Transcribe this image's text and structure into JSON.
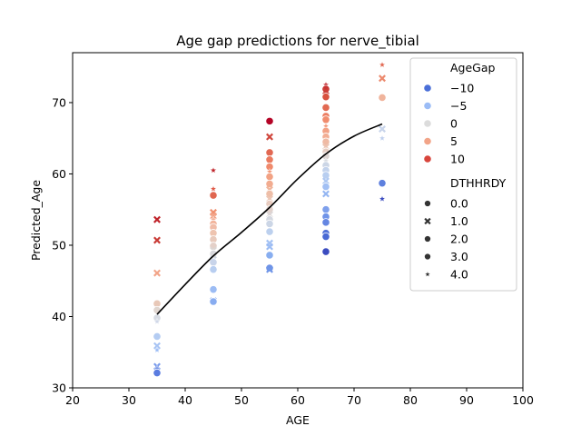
{
  "chart_data": {
    "type": "scatter",
    "title": "Age gap predictions for nerve_tibial",
    "xlabel": "AGE",
    "ylabel": "Predicted_Age",
    "xlim": [
      20,
      100
    ],
    "ylim": [
      30,
      77
    ],
    "xticks": [
      "20",
      "30",
      "40",
      "50",
      "60",
      "70",
      "80",
      "90",
      "100"
    ],
    "yticks": [
      "30",
      "40",
      "50",
      "60",
      "70"
    ],
    "grid": false,
    "legend": {
      "placement": "top-right",
      "hue_title": "AgeGap",
      "hue_items": [
        {
          "label": "−10",
          "color": "#4a6fd8"
        },
        {
          "label": "−5",
          "color": "#9bbcf6"
        },
        {
          "label": "0",
          "color": "#dcdcdc"
        },
        {
          "label": "5",
          "color": "#f2a488"
        },
        {
          "label": "10",
          "color": "#d8453c"
        }
      ],
      "style_title": "DTHHRDY",
      "style_items": [
        {
          "label": "0.0",
          "marker": "circle"
        },
        {
          "label": "1.0",
          "marker": "x"
        },
        {
          "label": "2.0",
          "marker": "circle"
        },
        {
          "label": "3.0",
          "marker": "circle"
        },
        {
          "label": "4.0",
          "marker": "star"
        }
      ]
    },
    "trend_line": {
      "color": "#000000",
      "points": [
        [
          35,
          40.3
        ],
        [
          40,
          44.5
        ],
        [
          45,
          48.5
        ],
        [
          50,
          51.8
        ],
        [
          55,
          55.3
        ],
        [
          60,
          59.3
        ],
        [
          65,
          62.8
        ],
        [
          70,
          65.3
        ],
        [
          75,
          67.0
        ]
      ]
    },
    "points": [
      {
        "x": 35,
        "y": 53.6,
        "m": "x",
        "c": "#c0242b"
      },
      {
        "x": 35,
        "y": 50.7,
        "m": "x",
        "c": "#c93a36"
      },
      {
        "x": 35,
        "y": 46.1,
        "m": "x",
        "c": "#f2a488"
      },
      {
        "x": 35,
        "y": 41.8,
        "m": "circle",
        "c": "#e8c8b8"
      },
      {
        "x": 35,
        "y": 40.9,
        "m": "circle",
        "c": "#e0d6d0"
      },
      {
        "x": 35,
        "y": 39.8,
        "m": "circle",
        "c": "#d8dce4"
      },
      {
        "x": 35,
        "y": 39.3,
        "m": "star",
        "c": "#d0d8e8"
      },
      {
        "x": 35,
        "y": 37.2,
        "m": "circle",
        "c": "#b4ccf2"
      },
      {
        "x": 35,
        "y": 35.9,
        "m": "x",
        "c": "#a8c4f4"
      },
      {
        "x": 35,
        "y": 35.3,
        "m": "star",
        "c": "#9ebef6"
      },
      {
        "x": 35,
        "y": 33.0,
        "m": "x",
        "c": "#7a9cec"
      },
      {
        "x": 35,
        "y": 32.7,
        "m": "star",
        "c": "#6a8ae4"
      },
      {
        "x": 35,
        "y": 32.1,
        "m": "circle",
        "c": "#5a7ce0"
      },
      {
        "x": 45,
        "y": 60.5,
        "m": "star",
        "c": "#c0242b"
      },
      {
        "x": 45,
        "y": 57.9,
        "m": "star",
        "c": "#e05a48"
      },
      {
        "x": 45,
        "y": 57.0,
        "m": "circle",
        "c": "#e06650"
      },
      {
        "x": 45,
        "y": 54.6,
        "m": "x",
        "c": "#f09070"
      },
      {
        "x": 45,
        "y": 54.1,
        "m": "x",
        "c": "#f2a488"
      },
      {
        "x": 45,
        "y": 53.6,
        "m": "star",
        "c": "#f2aa90"
      },
      {
        "x": 45,
        "y": 53.0,
        "m": "circle",
        "c": "#f2b49c"
      },
      {
        "x": 45,
        "y": 52.5,
        "m": "circle",
        "c": "#f0bca8"
      },
      {
        "x": 45,
        "y": 51.7,
        "m": "circle",
        "c": "#eec4b0"
      },
      {
        "x": 45,
        "y": 50.8,
        "m": "circle",
        "c": "#e8cabc"
      },
      {
        "x": 45,
        "y": 49.9,
        "m": "circle",
        "c": "#e4d0c8"
      },
      {
        "x": 45,
        "y": 49.3,
        "m": "x",
        "c": "#dcd6d4"
      },
      {
        "x": 45,
        "y": 48.8,
        "m": "circle",
        "c": "#d8d8dc"
      },
      {
        "x": 45,
        "y": 48.0,
        "m": "x",
        "c": "#d0d8e4"
      },
      {
        "x": 45,
        "y": 47.6,
        "m": "circle",
        "c": "#c8d4ea"
      },
      {
        "x": 45,
        "y": 46.6,
        "m": "circle",
        "c": "#b8cef0"
      },
      {
        "x": 45,
        "y": 43.8,
        "m": "circle",
        "c": "#9cbcf4"
      },
      {
        "x": 45,
        "y": 42.2,
        "m": "x",
        "c": "#8cb0f2"
      },
      {
        "x": 45,
        "y": 42.1,
        "m": "circle",
        "c": "#88acf0"
      },
      {
        "x": 55,
        "y": 67.4,
        "m": "circle",
        "c": "#b40426"
      },
      {
        "x": 55,
        "y": 65.2,
        "m": "x",
        "c": "#d0473d"
      },
      {
        "x": 55,
        "y": 63.0,
        "m": "circle",
        "c": "#e26852"
      },
      {
        "x": 55,
        "y": 62.0,
        "m": "circle",
        "c": "#ea7b60"
      },
      {
        "x": 55,
        "y": 61.0,
        "m": "circle",
        "c": "#f08a6c"
      },
      {
        "x": 55,
        "y": 60.3,
        "m": "star",
        "c": "#f29878"
      },
      {
        "x": 55,
        "y": 59.6,
        "m": "circle",
        "c": "#f2a284"
      },
      {
        "x": 55,
        "y": 58.6,
        "m": "circle",
        "c": "#f2ac90"
      },
      {
        "x": 55,
        "y": 57.8,
        "m": "x",
        "c": "#f0b69c"
      },
      {
        "x": 55,
        "y": 57.2,
        "m": "circle",
        "c": "#eebea8"
      },
      {
        "x": 55,
        "y": 56.5,
        "m": "x",
        "c": "#ecc6b4"
      },
      {
        "x": 55,
        "y": 55.8,
        "m": "circle",
        "c": "#e8ccc0"
      },
      {
        "x": 55,
        "y": 55.0,
        "m": "circle",
        "c": "#e2d2cc"
      },
      {
        "x": 55,
        "y": 54.3,
        "m": "x",
        "c": "#dcd6d6"
      },
      {
        "x": 55,
        "y": 53.6,
        "m": "circle",
        "c": "#d4d8e0"
      },
      {
        "x": 55,
        "y": 53.0,
        "m": "circle",
        "c": "#ccd6e6"
      },
      {
        "x": 55,
        "y": 51.9,
        "m": "circle",
        "c": "#bcd0ee"
      },
      {
        "x": 55,
        "y": 50.3,
        "m": "x",
        "c": "#a4c2f4"
      },
      {
        "x": 55,
        "y": 49.8,
        "m": "x",
        "c": "#9cbcf4"
      },
      {
        "x": 55,
        "y": 48.6,
        "m": "circle",
        "c": "#88aef0"
      },
      {
        "x": 55,
        "y": 46.8,
        "m": "circle",
        "c": "#6e92e6"
      },
      {
        "x": 55,
        "y": 46.6,
        "m": "x",
        "c": "#7096e8"
      },
      {
        "x": 65,
        "y": 72.5,
        "m": "star",
        "c": "#c0242b"
      },
      {
        "x": 65,
        "y": 71.9,
        "m": "circle",
        "c": "#c83432"
      },
      {
        "x": 65,
        "y": 71.6,
        "m": "x",
        "c": "#cc3e38"
      },
      {
        "x": 65,
        "y": 70.8,
        "m": "circle",
        "c": "#d8513f"
      },
      {
        "x": 65,
        "y": 69.3,
        "m": "circle",
        "c": "#e26a52"
      },
      {
        "x": 65,
        "y": 68.1,
        "m": "circle",
        "c": "#ec7e62"
      },
      {
        "x": 65,
        "y": 67.6,
        "m": "circle",
        "c": "#f08c6e"
      },
      {
        "x": 65,
        "y": 66.7,
        "m": "star",
        "c": "#f2987a"
      },
      {
        "x": 65,
        "y": 66.0,
        "m": "circle",
        "c": "#f2a286"
      },
      {
        "x": 65,
        "y": 65.2,
        "m": "circle",
        "c": "#f2ae94"
      },
      {
        "x": 65,
        "y": 64.5,
        "m": "circle",
        "c": "#efbaa4"
      },
      {
        "x": 65,
        "y": 63.8,
        "m": "x",
        "c": "#ecc4b2"
      },
      {
        "x": 65,
        "y": 63.1,
        "m": "circle",
        "c": "#e6cdc2"
      },
      {
        "x": 65,
        "y": 62.5,
        "m": "circle",
        "c": "#dcd4d2"
      },
      {
        "x": 65,
        "y": 61.8,
        "m": "star",
        "c": "#d4d8de"
      },
      {
        "x": 65,
        "y": 61.2,
        "m": "circle",
        "c": "#ccd6e6"
      },
      {
        "x": 65,
        "y": 60.5,
        "m": "circle",
        "c": "#c2d2ec"
      },
      {
        "x": 65,
        "y": 59.8,
        "m": "circle",
        "c": "#b8cef0"
      },
      {
        "x": 65,
        "y": 59.0,
        "m": "x",
        "c": "#aec8f2"
      },
      {
        "x": 65,
        "y": 58.2,
        "m": "circle",
        "c": "#a2c0f4"
      },
      {
        "x": 65,
        "y": 57.2,
        "m": "x",
        "c": "#94b6f2"
      },
      {
        "x": 65,
        "y": 55.0,
        "m": "circle",
        "c": "#7ea0ec"
      },
      {
        "x": 65,
        "y": 54.0,
        "m": "circle",
        "c": "#7094e8"
      },
      {
        "x": 65,
        "y": 53.2,
        "m": "circle",
        "c": "#6486e2"
      },
      {
        "x": 65,
        "y": 51.7,
        "m": "circle",
        "c": "#5272d8"
      },
      {
        "x": 65,
        "y": 51.2,
        "m": "circle",
        "c": "#4a6ad4"
      },
      {
        "x": 65,
        "y": 49.1,
        "m": "circle",
        "c": "#3b4cc0"
      },
      {
        "x": 75,
        "y": 75.3,
        "m": "star",
        "c": "#e26852"
      },
      {
        "x": 75,
        "y": 73.4,
        "m": "x",
        "c": "#ec8a6e"
      },
      {
        "x": 75,
        "y": 70.7,
        "m": "circle",
        "c": "#f0b49c"
      },
      {
        "x": 75,
        "y": 66.3,
        "m": "x",
        "c": "#c8d4ea"
      },
      {
        "x": 75,
        "y": 65.0,
        "m": "star",
        "c": "#c0d0ee"
      },
      {
        "x": 75,
        "y": 58.7,
        "m": "circle",
        "c": "#5e80de"
      },
      {
        "x": 75,
        "y": 56.5,
        "m": "star",
        "c": "#3b4cc0"
      }
    ]
  }
}
